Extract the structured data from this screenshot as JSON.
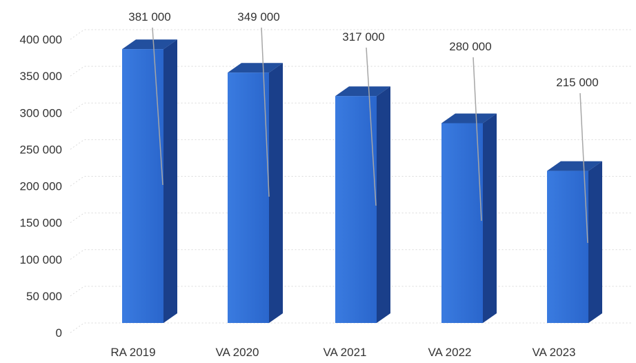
{
  "chart_data": {
    "type": "bar",
    "style": "3d-column",
    "categories": [
      "RA 2019",
      "VA 2020",
      "VA 2021",
      "VA 2022",
      "VA 2023"
    ],
    "values": [
      381000,
      349000,
      317000,
      280000,
      215000
    ],
    "data_labels": [
      "381 000",
      "349 000",
      "317 000",
      "280 000",
      "215 000"
    ],
    "y_ticks": [
      0,
      50000,
      100000,
      150000,
      200000,
      250000,
      300000,
      350000,
      400000
    ],
    "y_tick_labels": [
      "0",
      "50 000",
      "100 000",
      "150 000",
      "200 000",
      "250 000",
      "300 000",
      "350 000",
      "400 000"
    ],
    "ylim": [
      0,
      400000
    ],
    "grid": true,
    "legend": "none",
    "title": "",
    "xlabel": "",
    "ylabel": "",
    "colors": {
      "bar_front": "#2e6fd6",
      "bar_side": "#1a3f8a",
      "bar_top": "#224f9e",
      "leader_line": "#a6a6a6",
      "grid": "#d9d9d9",
      "text": "#333333"
    }
  }
}
